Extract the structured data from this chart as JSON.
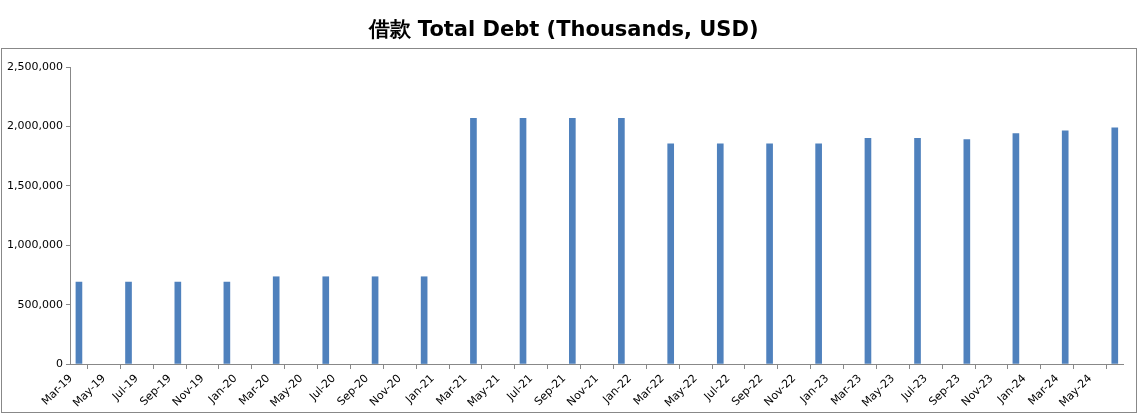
{
  "chart_data": {
    "type": "bar",
    "title": "借款 Total Debt (Thousands, USD)",
    "x": [
      "2019-03-16",
      "2019-06-16",
      "2019-09-16",
      "2019-12-16",
      "2020-03-16",
      "2020-06-16",
      "2020-09-16",
      "2020-12-16",
      "2021-03-16",
      "2021-06-16",
      "2021-09-16",
      "2021-12-16",
      "2022-03-16",
      "2022-06-16",
      "2022-09-16",
      "2022-12-16",
      "2023-03-16",
      "2023-06-16",
      "2023-09-16",
      "2023-12-16",
      "2024-03-16",
      "2024-06-16"
    ],
    "values": [
      690000,
      690000,
      690000,
      690000,
      735000,
      735000,
      735000,
      735000,
      2070000,
      2070000,
      2070000,
      2070000,
      1855000,
      1855000,
      1855000,
      1855000,
      1900000,
      1900000,
      1890000,
      1940000,
      1965000,
      1990000
    ],
    "color": "#4f81bd",
    "xlim": [
      "2019-03",
      "2024-07"
    ],
    "xticks": [
      {
        "value": "2019-03",
        "label": "Mar-19"
      },
      {
        "value": "2019-05",
        "label": "May-19"
      },
      {
        "value": "2019-07",
        "label": "Jul-19"
      },
      {
        "value": "2019-09",
        "label": "Sep-19"
      },
      {
        "value": "2019-11",
        "label": "Nov-19"
      },
      {
        "value": "2020-01",
        "label": "Jan-20"
      },
      {
        "value": "2020-03",
        "label": "Mar-20"
      },
      {
        "value": "2020-05",
        "label": "May-20"
      },
      {
        "value": "2020-07",
        "label": "Jul-20"
      },
      {
        "value": "2020-09",
        "label": "Sep-20"
      },
      {
        "value": "2020-11",
        "label": "Nov-20"
      },
      {
        "value": "2021-01",
        "label": "Jan-21"
      },
      {
        "value": "2021-03",
        "label": "Mar-21"
      },
      {
        "value": "2021-05",
        "label": "May-21"
      },
      {
        "value": "2021-07",
        "label": "Jul-21"
      },
      {
        "value": "2021-09",
        "label": "Sep-21"
      },
      {
        "value": "2021-11",
        "label": "Nov-21"
      },
      {
        "value": "2022-01",
        "label": "Jan-22"
      },
      {
        "value": "2022-03",
        "label": "Mar-22"
      },
      {
        "value": "2022-05",
        "label": "May-22"
      },
      {
        "value": "2022-07",
        "label": "Jul-22"
      },
      {
        "value": "2022-09",
        "label": "Sep-22"
      },
      {
        "value": "2022-11",
        "label": "Nov-22"
      },
      {
        "value": "2023-01",
        "label": "Jan-23"
      },
      {
        "value": "2023-03",
        "label": "Mar-23"
      },
      {
        "value": "2023-05",
        "label": "May-23"
      },
      {
        "value": "2023-07",
        "label": "Jul-23"
      },
      {
        "value": "2023-09",
        "label": "Sep-23"
      },
      {
        "value": "2023-11",
        "label": "Nov-23"
      },
      {
        "value": "2024-01",
        "label": "Jan-24"
      },
      {
        "value": "2024-03",
        "label": "Mar-24"
      },
      {
        "value": "2024-05",
        "label": "May-24"
      }
    ],
    "ylim": [
      0,
      2500000
    ],
    "yticks": [
      {
        "value": 0,
        "label": "0"
      },
      {
        "value": 500000,
        "label": "500,000"
      },
      {
        "value": 1000000,
        "label": "1,000,000"
      },
      {
        "value": 1500000,
        "label": "1,500,000"
      },
      {
        "value": 2000000,
        "label": "2,000,000"
      },
      {
        "value": 2500000,
        "label": "2,500,000"
      }
    ]
  }
}
